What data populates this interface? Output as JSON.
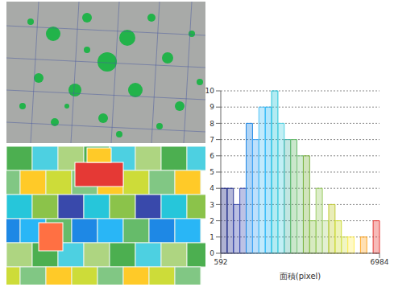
{
  "chart_data": {
    "type": "histogram",
    "x_label": "面積(pixel)",
    "bins": [
      592,
      847.68,
      1103.36,
      1359.04,
      1614.72,
      1870.4,
      2126.08,
      2381.76,
      2637.44,
      2893.12,
      3148.8,
      3404.48,
      3660.16,
      3915.84,
      4171.52,
      4427.2,
      4682.88,
      4938.56,
      5194.24,
      5449.92,
      5705.6,
      5961.28,
      6216.96,
      6472.64,
      6728.32,
      6984
    ],
    "values": [
      4,
      4,
      3,
      4,
      8,
      7,
      9,
      9,
      10,
      8,
      7,
      7,
      6,
      6,
      2,
      4,
      2,
      3,
      2,
      1,
      1,
      0,
      1,
      0,
      2
    ],
    "colors": [
      "#1a237e",
      "#283593",
      "#3949ab",
      "#3f51b5",
      "#1e88e5",
      "#42a5f5",
      "#4fc3f7",
      "#29b6f6",
      "#26c6da",
      "#4dd0e1",
      "#4db6ac",
      "#66bb6a",
      "#81c784",
      "#7cb342",
      "#8bc34a",
      "#9ccc65",
      "#aed581",
      "#c0ca33",
      "#cddc39",
      "#d4e157",
      "#ffee58",
      "#ffca28",
      "#ffa726",
      "#ff7043",
      "#e53935"
    ],
    "xlim": [
      592,
      6984
    ],
    "xticks": [
      592,
      6984
    ],
    "ylim": [
      0,
      10
    ],
    "yticks": [
      0,
      1,
      2,
      3,
      4,
      5,
      6,
      7,
      8,
      9,
      10
    ],
    "grid": true
  }
}
